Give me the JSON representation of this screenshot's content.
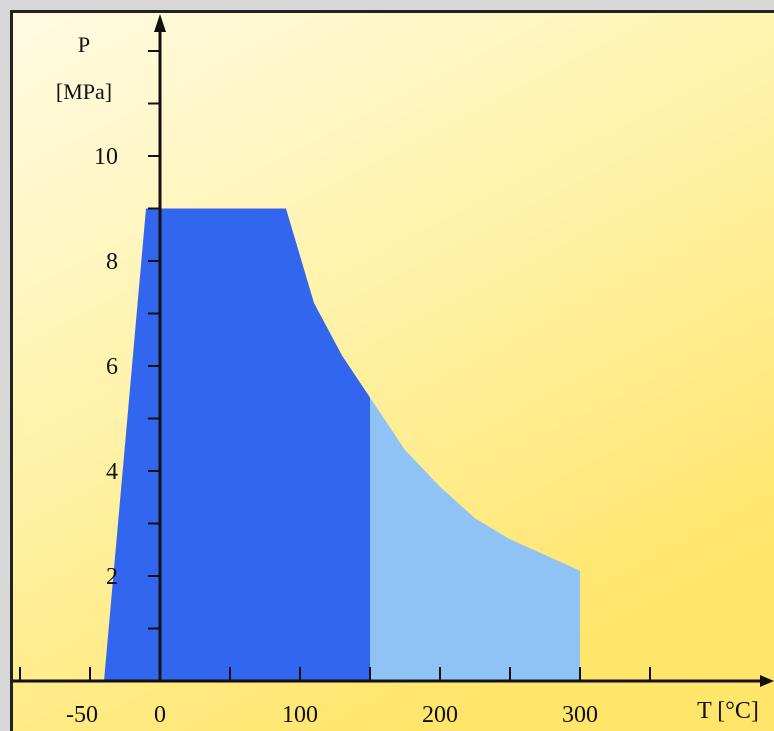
{
  "chart_data": {
    "type": "area",
    "y_axis": {
      "label_line1": "P",
      "label_line2": "[MPa]",
      "ticks": [
        "2",
        "4",
        "6",
        "8",
        "10"
      ],
      "range": [
        0,
        12.5
      ]
    },
    "x_axis": {
      "label": "T [°C]",
      "ticks": [
        "-50",
        "0",
        "100",
        "200",
        "300"
      ],
      "range": [
        -63,
        340
      ]
    },
    "series": [
      {
        "fill": "#3366ee",
        "points": [
          [
            -40,
            0
          ],
          [
            -10,
            9
          ],
          [
            90,
            9
          ],
          [
            110,
            7.2
          ],
          [
            130,
            6.2
          ],
          [
            150,
            5.4
          ],
          [
            150,
            0
          ]
        ]
      },
      {
        "fill": "#8fc3f5",
        "points": [
          [
            150,
            0
          ],
          [
            150,
            5.4
          ],
          [
            175,
            4.4
          ],
          [
            200,
            3.7
          ],
          [
            225,
            3.1
          ],
          [
            250,
            2.7
          ],
          [
            275,
            2.4
          ],
          [
            300,
            2.1
          ],
          [
            300,
            0
          ]
        ]
      }
    ],
    "colors": {
      "background_top": "#fff9dc",
      "background_bottom": "#ffe97a",
      "axis": "#111111"
    }
  }
}
